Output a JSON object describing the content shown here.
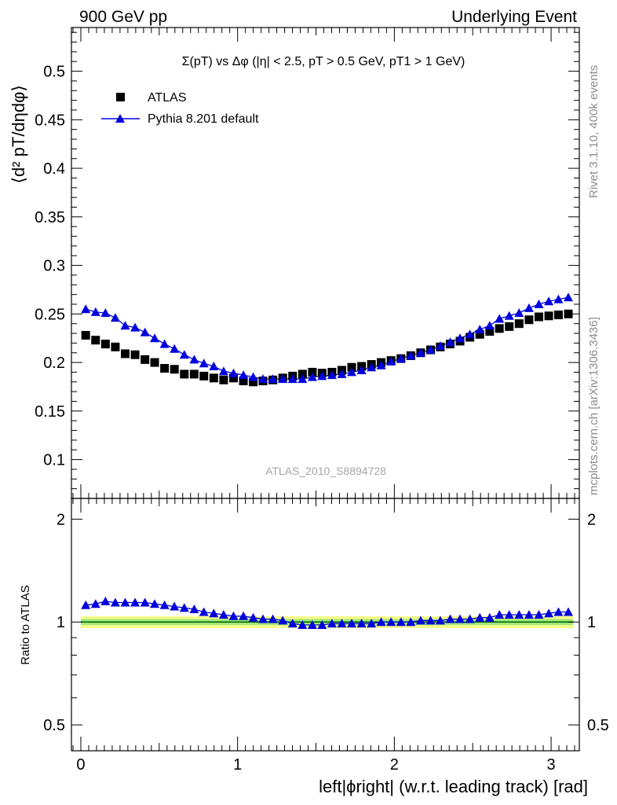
{
  "header": {
    "left": "900 GeV pp",
    "right": "Underlying Event"
  },
  "side_labels": {
    "upper": "Rivet 3.1.10,  400k events",
    "lower": "mcplots.cern.ch [arXiv:1306.3436]"
  },
  "analysis_label": "ATLAS_2010_S8894728",
  "colors": {
    "data": "#000000",
    "mc": "#0000dd",
    "band_inner": "#a0e878",
    "band_outer": "#f4fb8a",
    "ratio_ref": "#006400"
  },
  "chart_data": [
    {
      "type": "scatter",
      "title": "Σ(pT) vs Δφ (|η| < 2.5, pT > 0.5 GeV, pT1 > 1 GeV)",
      "ylabel": "⟨d² pT/dηdφ⟩",
      "xlim": [
        -0.06,
        3.18
      ],
      "ylim": [
        0.06,
        0.545
      ],
      "yticks": [
        0.1,
        0.15,
        0.2,
        0.25,
        0.3,
        0.35,
        0.4,
        0.45,
        0.5
      ],
      "yticklabels": [
        "0.1",
        "0.15",
        "0.2",
        "0.25",
        "0.3",
        "0.35",
        "0.4",
        "0.45",
        "0.5"
      ],
      "legend": {
        "placement": "top-left"
      },
      "x": [
        0.031,
        0.094,
        0.157,
        0.22,
        0.283,
        0.346,
        0.409,
        0.471,
        0.534,
        0.597,
        0.66,
        0.723,
        0.785,
        0.848,
        0.911,
        0.974,
        1.037,
        1.1,
        1.162,
        1.225,
        1.288,
        1.351,
        1.414,
        1.477,
        1.539,
        1.602,
        1.665,
        1.728,
        1.791,
        1.854,
        1.916,
        1.979,
        2.042,
        2.105,
        2.168,
        2.231,
        2.293,
        2.356,
        2.419,
        2.482,
        2.545,
        2.608,
        2.67,
        2.733,
        2.796,
        2.859,
        2.922,
        2.985,
        3.047,
        3.11
      ],
      "series": [
        {
          "name": "ATLAS",
          "marker": "square",
          "values": [
            0.228,
            0.223,
            0.219,
            0.216,
            0.209,
            0.208,
            0.203,
            0.2,
            0.194,
            0.193,
            0.188,
            0.188,
            0.186,
            0.184,
            0.182,
            0.184,
            0.181,
            0.18,
            0.181,
            0.182,
            0.184,
            0.186,
            0.188,
            0.19,
            0.189,
            0.19,
            0.192,
            0.195,
            0.196,
            0.198,
            0.2,
            0.202,
            0.204,
            0.207,
            0.21,
            0.213,
            0.216,
            0.219,
            0.222,
            0.226,
            0.229,
            0.232,
            0.235,
            0.237,
            0.24,
            0.244,
            0.247,
            0.248,
            0.249,
            0.25
          ]
        },
        {
          "name": "Pythia 8.201 default",
          "marker": "triangle",
          "values": [
            0.255,
            0.252,
            0.251,
            0.246,
            0.238,
            0.236,
            0.231,
            0.225,
            0.219,
            0.214,
            0.208,
            0.203,
            0.199,
            0.196,
            0.191,
            0.189,
            0.187,
            0.185,
            0.183,
            0.183,
            0.183,
            0.183,
            0.183,
            0.185,
            0.186,
            0.187,
            0.188,
            0.19,
            0.192,
            0.195,
            0.197,
            0.201,
            0.204,
            0.207,
            0.21,
            0.213,
            0.217,
            0.221,
            0.225,
            0.229,
            0.234,
            0.238,
            0.245,
            0.248,
            0.251,
            0.256,
            0.26,
            0.263,
            0.265,
            0.267
          ]
        }
      ]
    },
    {
      "type": "scatter",
      "ylabel": "Ratio to ATLAS",
      "xlabel": "left|ϕright| (w.r.t. leading track) [rad]",
      "xlim": [
        -0.06,
        3.18
      ],
      "ylim": [
        0.42,
        2.3
      ],
      "xticks": [
        0,
        1,
        2,
        3
      ],
      "xticklabels": [
        "0",
        "1",
        "2",
        "3"
      ],
      "yticks": [
        0.5,
        1,
        2
      ],
      "yticklabels": [
        "0.5",
        "1",
        "2"
      ],
      "band_inner": [
        0.98,
        1.02
      ],
      "band_outer": [
        0.96,
        1.04
      ],
      "series": [
        {
          "name": "Pythia 8.201 default",
          "values": [
            1.12,
            1.13,
            1.15,
            1.14,
            1.14,
            1.14,
            1.14,
            1.13,
            1.12,
            1.11,
            1.1,
            1.09,
            1.07,
            1.06,
            1.05,
            1.04,
            1.04,
            1.03,
            1.02,
            1.02,
            1.01,
            0.99,
            0.98,
            0.98,
            0.98,
            0.99,
            0.99,
            0.99,
            0.99,
            0.99,
            1.0,
            1.0,
            1.0,
            1.0,
            1.01,
            1.01,
            1.01,
            1.02,
            1.02,
            1.02,
            1.03,
            1.03,
            1.05,
            1.05,
            1.05,
            1.05,
            1.05,
            1.06,
            1.07,
            1.07
          ]
        }
      ]
    }
  ]
}
